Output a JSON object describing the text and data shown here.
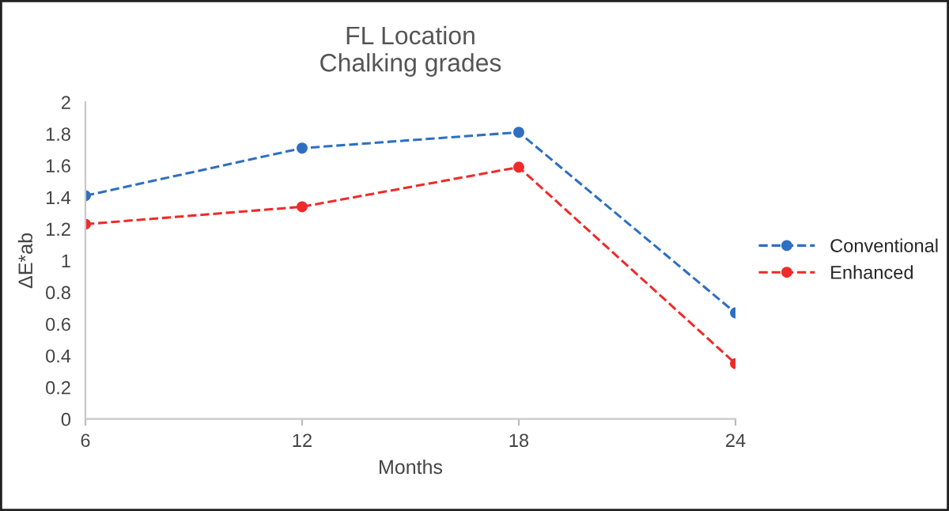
{
  "chart_data": {
    "type": "line",
    "title": "FL Location\nChalking grades",
    "xlabel": "Months",
    "ylabel": "ΔE*ab",
    "x": [
      6,
      12,
      18,
      24
    ],
    "series": [
      {
        "name": "Conventional",
        "color": "#2f6fc2",
        "values": [
          1.41,
          1.71,
          1.81,
          0.67
        ]
      },
      {
        "name": "Enhanced",
        "color": "#ee2b2b",
        "values": [
          1.23,
          1.34,
          1.59,
          0.35
        ]
      }
    ],
    "xlim": [
      6,
      24
    ],
    "xticks": [
      6,
      12,
      18,
      24
    ],
    "ylim": [
      0,
      2
    ],
    "yticks": [
      0,
      0.2,
      0.4,
      0.6,
      0.8,
      1,
      1.2,
      1.4,
      1.6,
      1.8,
      2
    ],
    "grid": false,
    "legend": "right",
    "marker": "circle",
    "line_style": "dashed"
  }
}
